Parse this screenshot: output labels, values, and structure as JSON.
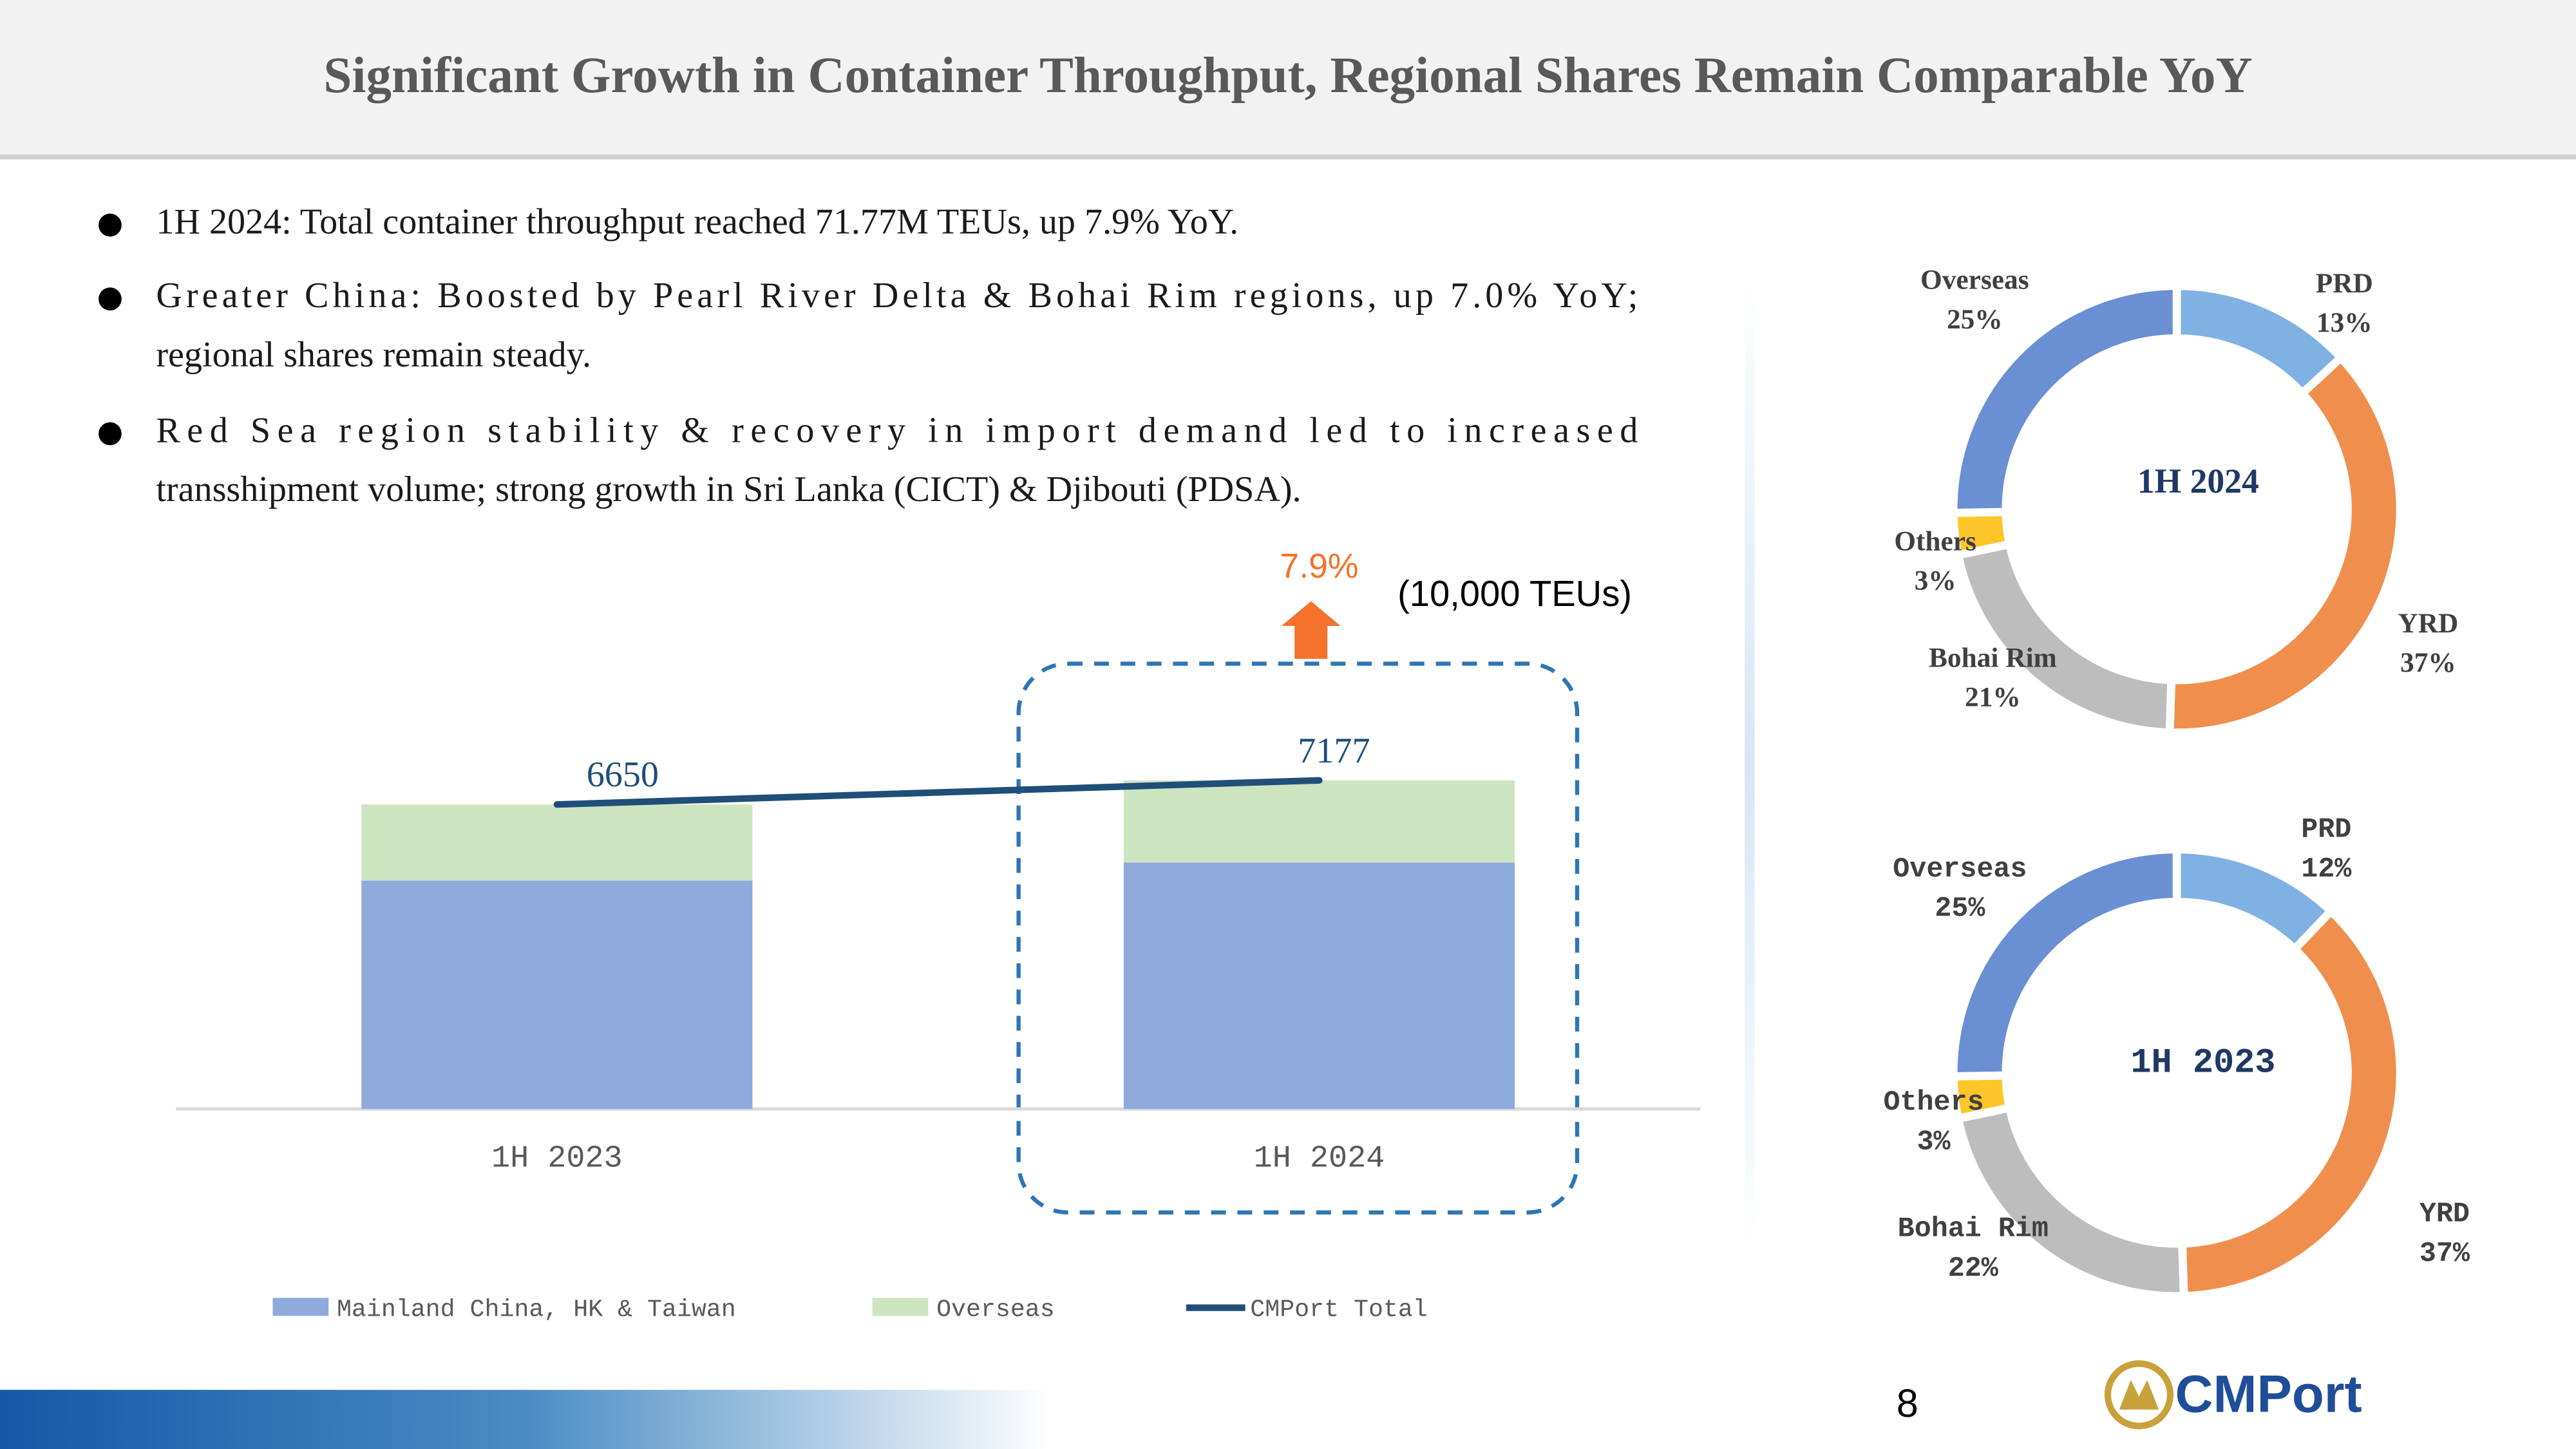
{
  "header": {
    "title": "Significant Growth in Container Throughput, Regional Shares Remain Comparable YoY"
  },
  "bullets": [
    [
      "1H 2024: Total container throughput reached 71.77M TEUs, up 7.9% YoY."
    ],
    [
      "Greater China: Boosted by Pearl River Delta & Bohai Rim regions, up 7.0% YoY;",
      "regional shares remain steady."
    ],
    [
      "Red Sea region stability & recovery in import demand led to increased",
      "transshipment volume; strong growth in Sri Lanka (CICT) & Djibouti (PDSA)."
    ]
  ],
  "chart_data": [
    {
      "type": "bar",
      "stacked": true,
      "categories": [
        "1H 2023",
        "1H 2024"
      ],
      "series": [
        {
          "name": "Mainland China, HK & Taiwan",
          "color": "#8faadc",
          "values": [
            4988,
            5383
          ]
        },
        {
          "name": "Overseas",
          "color": "#cde4c0",
          "values": [
            1662,
            1794
          ]
        },
        {
          "name": "CMPort Total",
          "color": "#1f4e79",
          "type": "line",
          "values": [
            6650,
            7177
          ]
        }
      ],
      "unit_label": "(10,000 TEUs)",
      "annotation": "7.9%"
    },
    {
      "type": "donut",
      "title": "1H 2024",
      "categories": [
        "PRD",
        "YRD",
        "Bohai Rim",
        "Others",
        "Overseas"
      ],
      "values": [
        13,
        37,
        21,
        3,
        25
      ],
      "value_labels": [
        "13%",
        "37%",
        "21%",
        "3%",
        "25%"
      ],
      "colors": [
        "#7fb1e3",
        "#f08f4d",
        "#bdbdbd",
        "#ffc62a",
        "#6a8fd3"
      ]
    },
    {
      "type": "donut",
      "title": "1H 2023",
      "categories": [
        "PRD",
        "YRD",
        "Bohai Rim",
        "Others",
        "Overseas"
      ],
      "values": [
        12,
        37,
        22,
        3,
        25
      ],
      "value_labels": [
        "12%",
        "37%",
        "22%",
        "3%",
        "25%"
      ],
      "colors": [
        "#7fb1e3",
        "#f08f4d",
        "#bdbdbd",
        "#ffc62a",
        "#6a8fd3"
      ]
    }
  ],
  "page_number": "8",
  "logo": "CMPort"
}
